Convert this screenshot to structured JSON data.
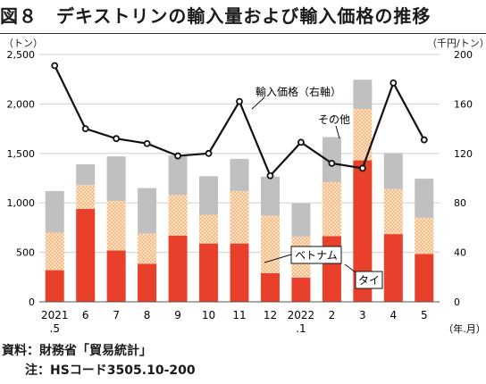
{
  "title": "図８　デキストリンの輸入量および輸入価格の推移",
  "unit_left": "（トン）",
  "unit_right": "（千円/トン）",
  "source": "資料：財務省「貿易統計」",
  "note": "注：HSコード3505.10-200",
  "chart_data": {
    "type": "bar",
    "stacked": true,
    "categories": [
      "2021.5",
      "6",
      "7",
      "8",
      "9",
      "10",
      "11",
      "12",
      "2022.1",
      "2",
      "3",
      "4",
      "5"
    ],
    "category_labels": [
      [
        "2021",
        ".5"
      ],
      [
        "6"
      ],
      [
        "7"
      ],
      [
        "8"
      ],
      [
        "9"
      ],
      [
        "10"
      ],
      [
        "11"
      ],
      [
        "12"
      ],
      [
        "2022",
        ".1"
      ],
      [
        "2"
      ],
      [
        "3"
      ],
      [
        "4"
      ],
      [
        "5"
      ]
    ],
    "xlabel": "（年.月）",
    "y_left": {
      "ylim": [
        0,
        2500
      ],
      "ticks": [
        "0",
        "500",
        "1,000",
        "1,500",
        "2,000",
        "2,500"
      ]
    },
    "y_right": {
      "ylim": [
        0,
        200
      ],
      "ticks": [
        "0",
        "40",
        "80",
        "120",
        "160",
        "200"
      ]
    },
    "gridlines": true,
    "series": [
      {
        "name": "タイ",
        "color": "#e8402a",
        "pattern": "solid",
        "values": [
          320,
          940,
          520,
          385,
          670,
          590,
          590,
          290,
          245,
          665,
          1430,
          685,
          485
        ]
      },
      {
        "name": "ベトナム",
        "color": "#f6b27c",
        "pattern": "dots",
        "values": [
          380,
          240,
          500,
          305,
          410,
          290,
          530,
          580,
          415,
          545,
          520,
          455,
          365
        ]
      },
      {
        "name": "その他",
        "color": "#c0c0c0",
        "pattern": "solid",
        "values": [
          420,
          210,
          450,
          460,
          400,
          390,
          325,
          395,
          335,
          455,
          295,
          360,
          395
        ]
      }
    ],
    "line": {
      "name": "輸入価格（右軸）",
      "axis": "right",
      "color": "#111111",
      "values": [
        191,
        140,
        132,
        128,
        118,
        120,
        162,
        102,
        129,
        112,
        108,
        177,
        131
      ]
    },
    "annotations": {
      "line_label": "輸入価格（右軸）",
      "other_label": "その他",
      "vietnam_label": "ベトナム",
      "thai_label": "タイ"
    }
  }
}
